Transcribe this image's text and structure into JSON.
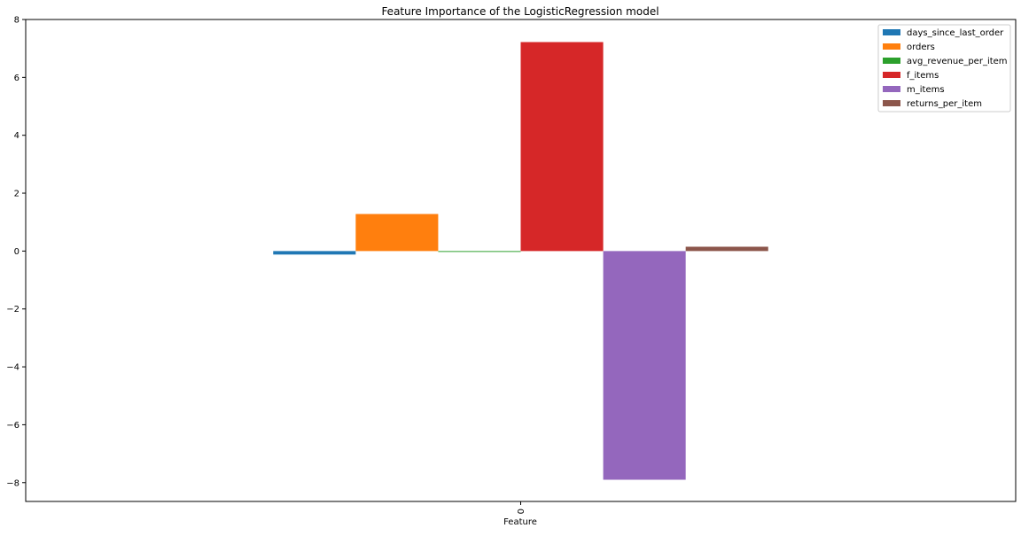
{
  "chart_data": {
    "type": "bar",
    "title": "Feature Importance of the LogisticRegression model",
    "xlabel": "Feature",
    "ylabel": "",
    "categories": [
      "0"
    ],
    "ylim": [
      -8.65,
      8.0
    ],
    "yticks": [
      -8,
      -6,
      -4,
      -2,
      0,
      2,
      4,
      6,
      8
    ],
    "ytick_labels": [
      "−8",
      "−6",
      "−4",
      "−2",
      "0",
      "2",
      "4",
      "6",
      "8"
    ],
    "grid": false,
    "legend_position": "top-right",
    "series": [
      {
        "name": "days_since_last_order",
        "values": [
          -0.12
        ],
        "color": "#1f77b4"
      },
      {
        "name": "orders",
        "values": [
          1.28
        ],
        "color": "#ff7f0e"
      },
      {
        "name": "avg_revenue_per_item",
        "values": [
          -0.03
        ],
        "color": "#2ca02c"
      },
      {
        "name": "f_items",
        "values": [
          7.22
        ],
        "color": "#d62728"
      },
      {
        "name": "m_items",
        "values": [
          -7.9
        ],
        "color": "#9467bd"
      },
      {
        "name": "returns_per_item",
        "values": [
          0.15
        ],
        "color": "#8c564b"
      }
    ]
  }
}
